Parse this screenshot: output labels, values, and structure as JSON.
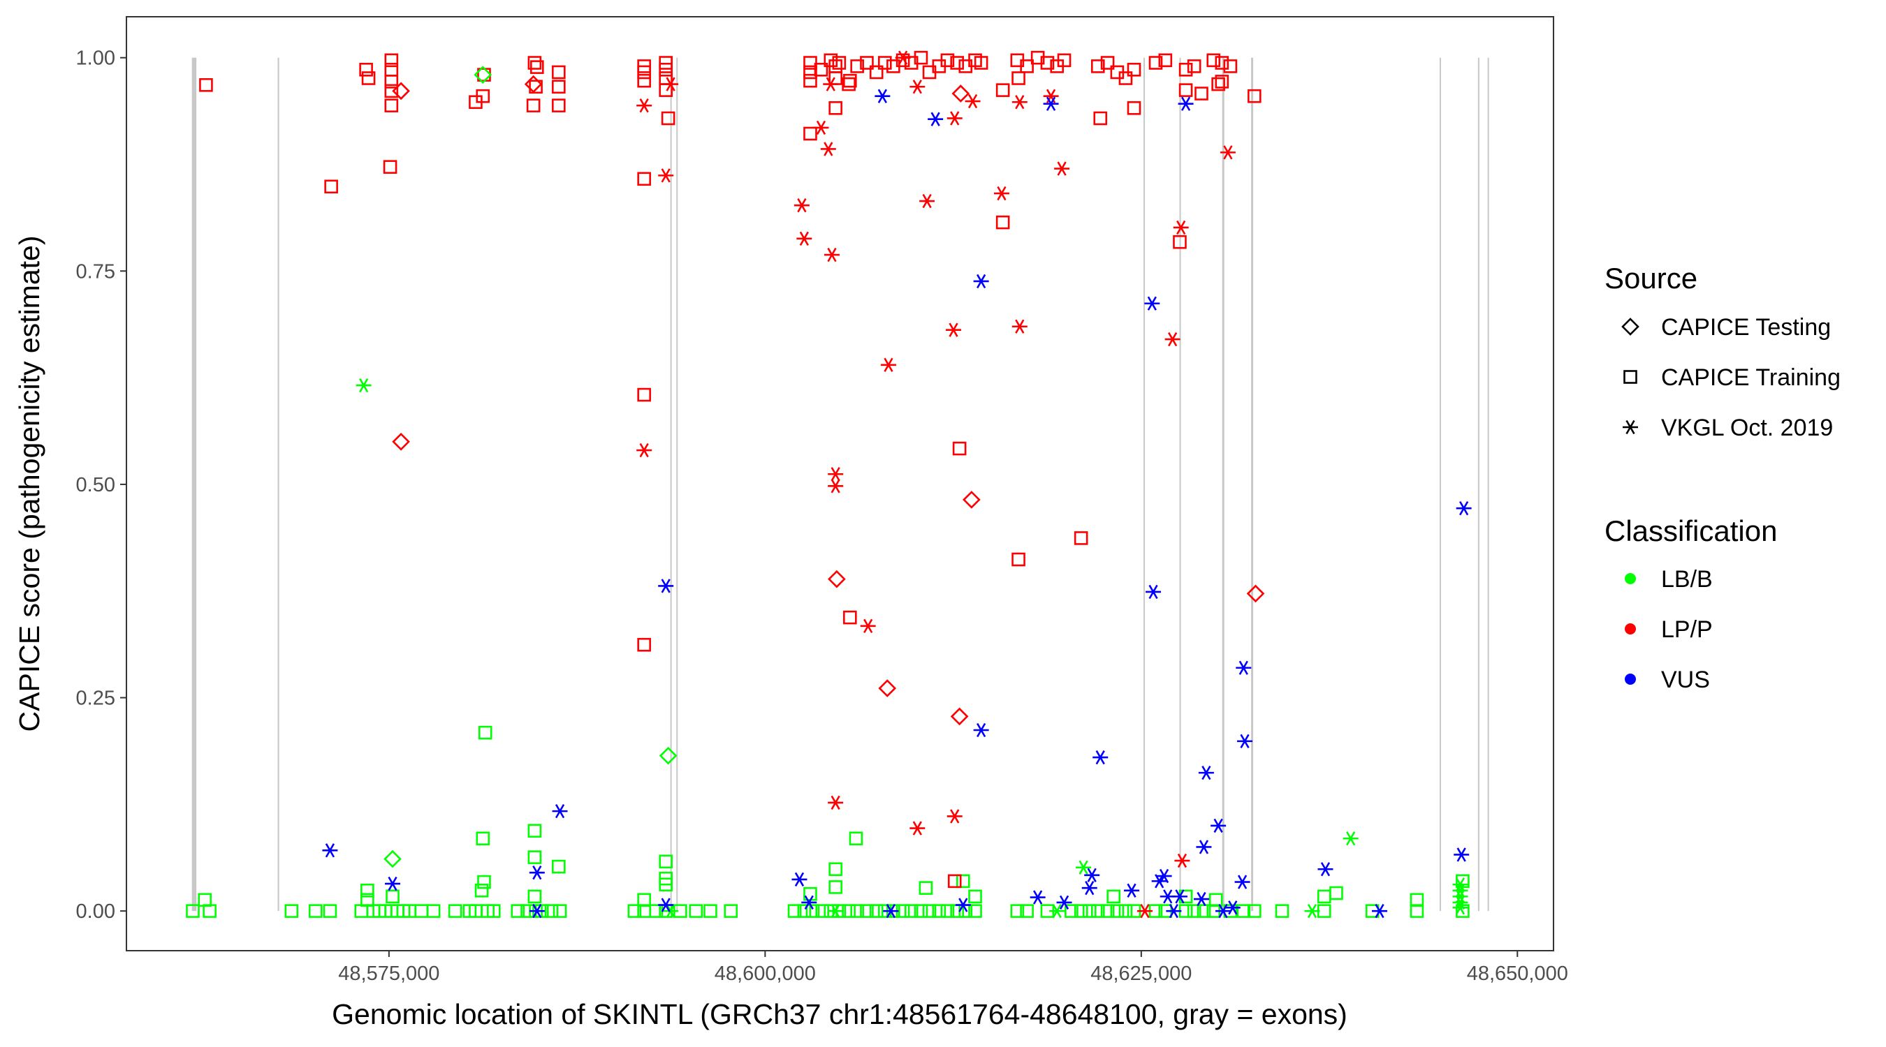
{
  "chart_data": {
    "type": "scatter",
    "title": "",
    "xlabel": "Genomic location of SKINTL (GRCh37 chr1:48561764-48648100, gray = exons)",
    "ylabel": "CAPICE score (pathogenicity estimate)",
    "xlim": [
      48557550,
      48652400
    ],
    "ylim": [
      -0.0465,
      1.048
    ],
    "x_ticks": [
      48575000,
      48600000,
      48625000,
      48650000
    ],
    "x_tick_labels": [
      "48,575,000",
      "48,600,000",
      "48,625,000",
      "48,650,000"
    ],
    "y_ticks": [
      0,
      0.25,
      0.5,
      0.75,
      1
    ],
    "y_tick_labels": [
      "0.00",
      "0.25",
      "0.50",
      "0.75",
      "1.00"
    ],
    "grid": false,
    "legend_placement": "right",
    "exon_color": "#c8c8c8",
    "exons": [
      [
        48561900,
        48562200
      ],
      [
        48567600,
        48567700
      ],
      [
        48593700,
        48593760
      ],
      [
        48594100,
        48594140
      ],
      [
        48625150,
        48625180
      ],
      [
        48627540,
        48627580
      ],
      [
        48630380,
        48630520
      ],
      [
        48632300,
        48632440
      ],
      [
        48644830,
        48644860
      ],
      [
        48647380,
        48647420
      ],
      [
        48648020,
        48648060
      ]
    ],
    "legend": {
      "source_title": "Source",
      "source_items": [
        {
          "label": "CAPICE Testing",
          "shape": "diamond"
        },
        {
          "label": "CAPICE Training",
          "shape": "square"
        },
        {
          "label": "VKGL Oct. 2019",
          "shape": "asterisk"
        }
      ],
      "classification_title": "Classification",
      "classification_items": [
        {
          "label": "LB/B",
          "color": "#00ff00"
        },
        {
          "label": "LP/P",
          "color": "#ff0000"
        },
        {
          "label": "VUS",
          "color": "#0000ff"
        }
      ]
    },
    "series": [
      {
        "source": "CAPICE Training",
        "classification": "LB/B",
        "x": [
          48581400,
          48581240,
          48584680,
          48584680,
          48586280,
          48593400,
          48593400,
          48593400,
          48606040,
          48604680,
          48604680,
          48610680,
          48613160,
          48637960,
          48637160,
          48643320,
          48646360,
          48562760,
          48573560,
          48573560,
          48575240,
          48581160,
          48581320,
          48584680,
          48591960,
          48603000,
          48613960,
          48623160,
          48627960,
          48629960,
          48561960,
          48563080,
          48568520,
          48570120,
          48571080,
          48573160,
          48573960,
          48574360,
          48574760,
          48575560,
          48575960,
          48576360,
          48577160,
          48577960,
          48579400,
          48580360,
          48580760,
          48581560,
          48581960,
          48583560,
          48584200,
          48585160,
          48585800,
          48586360,
          48591320,
          48592760,
          48594360,
          48595400,
          48596360,
          48597720,
          48601960,
          48602600,
          48603160,
          48603800,
          48604360,
          48604920,
          48605560,
          48606120,
          48606760,
          48607400,
          48607960,
          48608520,
          48609160,
          48609720,
          48610360,
          48610920,
          48611560,
          48612120,
          48612760,
          48613320,
          48613960,
          48616760,
          48617400,
          48618760,
          48620360,
          48621000,
          48621560,
          48622120,
          48622760,
          48623400,
          48623960,
          48624520,
          48625960,
          48626600,
          48627960,
          48628520,
          48629160,
          48629800,
          48630920,
          48631800,
          48632520,
          48634360,
          48637160,
          48640360,
          48643320,
          48646360,
          48575160,
          48593400,
          48591960,
          48584760
        ],
        "y": [
          0.209,
          0.085,
          0.094,
          0.063,
          0.052,
          0.058,
          0.038,
          0.031,
          0.085,
          0.049,
          0.028,
          0.027,
          0.035,
          0.021,
          0.017,
          0.013,
          0.035,
          0.013,
          0.024,
          0.013,
          0.017,
          0.024,
          0.034,
          0.017,
          0.013,
          0.02,
          0.017,
          0.017,
          0.017,
          0.013,
          0,
          0,
          0,
          0,
          0,
          0,
          0,
          0,
          0,
          0,
          0,
          0,
          0,
          0,
          0,
          0,
          0,
          0,
          0,
          0,
          0,
          0,
          0,
          0,
          0,
          0,
          0,
          0,
          0,
          0,
          0,
          0,
          0,
          0,
          0,
          0,
          0,
          0,
          0,
          0,
          0,
          0,
          0,
          0,
          0,
          0,
          0,
          0,
          0,
          0,
          0,
          0,
          0,
          0,
          0,
          0,
          0,
          0,
          0,
          0,
          0,
          0,
          0,
          0,
          0,
          0,
          0,
          0,
          0,
          0,
          0,
          0,
          0,
          0,
          0,
          0,
          0,
          0,
          0,
          0
        ]
      },
      {
        "source": "CAPICE Training",
        "classification": "LP/P",
        "x": [
          48562840,
          48571160,
          48573480,
          48573640,
          48575160,
          48575160,
          48575160,
          48575160,
          48575160,
          48575080,
          48580760,
          48581240,
          48581320,
          48584680,
          48584840,
          48584760,
          48584600,
          48586280,
          48586280,
          48586280,
          48591960,
          48591960,
          48591960,
          48593400,
          48593400,
          48593400,
          48593400,
          48593560,
          48591960,
          48591960,
          48591960,
          48603000,
          48603000,
          48603000,
          48603720,
          48604360,
          48604680,
          48604680,
          48604920,
          48605560,
          48606120,
          48606760,
          48607400,
          48607960,
          48608520,
          48609160,
          48609720,
          48610360,
          48610920,
          48611560,
          48612120,
          48612760,
          48613320,
          48613960,
          48614360,
          48616760,
          48617400,
          48618120,
          48618760,
          48619400,
          48619880,
          48622120,
          48622760,
          48623400,
          48623960,
          48624520,
          48625960,
          48626600,
          48627960,
          48628520,
          48629800,
          48630360,
          48630920,
          48630360,
          48603000,
          48604680,
          48605640,
          48615800,
          48616840,
          48622280,
          48624520,
          48627960,
          48629000,
          48627560,
          48632520,
          48630120,
          48605640,
          48612920,
          48615800,
          48616840,
          48621000,
          48612600
        ],
        "y": [
          0.968,
          0.849,
          0.986,
          0.976,
          0.997,
          0.986,
          0.972,
          0.961,
          0.944,
          0.872,
          0.948,
          0.955,
          0.98,
          0.994,
          0.989,
          0.966,
          0.944,
          0.983,
          0.966,
          0.944,
          0.99,
          0.983,
          0.973,
          0.994,
          0.986,
          0.976,
          0.962,
          0.929,
          0.858,
          0.605,
          0.312,
          0.994,
          0.983,
          0.973,
          0.986,
          0.997,
          0.99,
          0.976,
          0.994,
          0.969,
          0.99,
          0.994,
          0.983,
          0.994,
          0.99,
          0.997,
          0.994,
          1.0,
          0.983,
          0.99,
          0.997,
          0.994,
          0.99,
          0.997,
          0.994,
          0.997,
          0.99,
          1.0,
          0.994,
          0.99,
          0.997,
          0.99,
          0.994,
          0.983,
          0.976,
          0.986,
          0.994,
          0.997,
          0.986,
          0.99,
          0.997,
          0.994,
          0.99,
          0.972,
          0.911,
          0.941,
          0.973,
          0.962,
          0.976,
          0.929,
          0.941,
          0.962,
          0.958,
          0.784,
          0.955,
          0.969,
          0.344,
          0.542,
          0.807,
          0.412,
          0.437,
          0.035
        ]
      },
      {
        "source": "CAPICE Testing",
        "classification": "LB/B",
        "x": [
          48581240,
          48575240,
          48593560
        ],
        "y": [
          0.98,
          0.061,
          0.182
        ]
      },
      {
        "source": "CAPICE Testing",
        "classification": "LP/P",
        "x": [
          48575800,
          48575800,
          48584600,
          48604760,
          48608120,
          48612920,
          48613720,
          48632600,
          48613000
        ],
        "y": [
          0.961,
          0.55,
          0.969,
          0.389,
          0.261,
          0.228,
          0.482,
          0.372,
          0.958
        ]
      },
      {
        "source": "VKGL Oct. 2019",
        "classification": "LB/B",
        "x": [
          48573320,
          48638920,
          48621160,
          48636360,
          48646200,
          48646200,
          48646200,
          48646200,
          48646200,
          48593720,
          48619400,
          48604680
        ],
        "y": [
          0.616,
          0.085,
          0.051,
          0.0,
          0.031,
          0.024,
          0.017,
          0.01,
          0.004,
          0.0,
          0.0,
          0.0
        ]
      },
      {
        "source": "VKGL Oct. 2019",
        "classification": "LP/P",
        "x": [
          48591960,
          48591960,
          48593400,
          48593720,
          48602440,
          48602600,
          48603720,
          48604200,
          48604440,
          48604680,
          48604680,
          48604680,
          48606840,
          48608200,
          48610120,
          48610760,
          48612520,
          48612600,
          48612600,
          48613800,
          48615720,
          48616920,
          48616920,
          48619000,
          48619720,
          48627080,
          48627640,
          48627720,
          48630760,
          48625240,
          48609160,
          48604360,
          48610120
        ],
        "y": [
          0.944,
          0.54,
          0.862,
          0.969,
          0.827,
          0.788,
          0.918,
          0.893,
          0.769,
          0.512,
          0.498,
          0.127,
          0.334,
          0.64,
          0.097,
          0.832,
          0.681,
          0.111,
          0.929,
          0.949,
          0.841,
          0.685,
          0.948,
          0.955,
          0.87,
          0.67,
          0.801,
          0.059,
          0.889,
          0.0,
          1.0,
          0.969,
          0.966
        ]
      },
      {
        "source": "VKGL Oct. 2019",
        "classification": "VUS",
        "x": [
          48571080,
          48575240,
          48584840,
          48584840,
          48586360,
          48593400,
          48593400,
          48602280,
          48602920,
          48607800,
          48608360,
          48611320,
          48613160,
          48614360,
          48614360,
          48618120,
          48619000,
          48619880,
          48621560,
          48621720,
          48622280,
          48624360,
          48625720,
          48625800,
          48626200,
          48626520,
          48626760,
          48627160,
          48627560,
          48627960,
          48629000,
          48629160,
          48629320,
          48630120,
          48630440,
          48631080,
          48631720,
          48631800,
          48631880,
          48637240,
          48640840,
          48646280,
          48646440
        ],
        "y": [
          0.071,
          0.032,
          0.045,
          0.0,
          0.117,
          0.381,
          0.007,
          0.037,
          0.01,
          0.955,
          0.0,
          0.928,
          0.007,
          0.738,
          0.212,
          0.016,
          0.946,
          0.01,
          0.027,
          0.042,
          0.18,
          0.024,
          0.712,
          0.374,
          0.035,
          0.041,
          0.017,
          0.0,
          0.017,
          0.946,
          0.014,
          0.075,
          0.162,
          0.1,
          0.0,
          0.004,
          0.034,
          0.285,
          0.199,
          0.049,
          0.0,
          0.066,
          0.472
        ]
      }
    ]
  }
}
